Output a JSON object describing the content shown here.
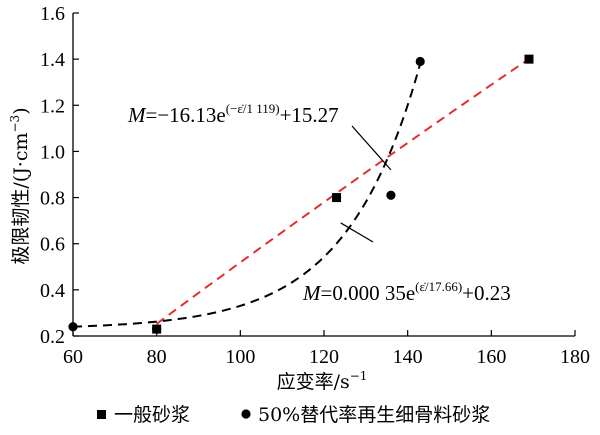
{
  "chart_data": {
    "type": "scatter",
    "xlabel": "应变率/s",
    "xlabel_sup": "−1",
    "ylabel": "极限韧性/(J·cm",
    "ylabel_sup": "−3",
    "ylabel_end": ")",
    "xlim": [
      60,
      180
    ],
    "ylim": [
      0.2,
      1.6
    ],
    "xticks": [
      "60",
      "80",
      "100",
      "120",
      "140",
      "160",
      "180"
    ],
    "yticks": [
      "0.2",
      "0.4",
      "0.6",
      "0.8",
      "1.0",
      "1.2",
      "1.4",
      "1.6"
    ],
    "grid": false,
    "legend_position": "bottom",
    "series": [
      {
        "name": "一般砂浆",
        "marker": "square",
        "color": "#000000",
        "points": [
          [
            80,
            0.23
          ],
          [
            123,
            0.8
          ],
          [
            169,
            1.4
          ]
        ],
        "fit": {
          "color": "#e03030",
          "dash": "dashed",
          "x_range": [
            80,
            169
          ],
          "equation": {
            "prefix": "M",
            "middle": "=−16.13e",
            "exponent": "(−ε̇/1 119)",
            "suffix": "+15.27"
          }
        }
      },
      {
        "name": "50%替代率再生细骨料砂浆",
        "marker": "circle",
        "color": "#000000",
        "points": [
          [
            60,
            0.24
          ],
          [
            80,
            0.23
          ],
          [
            136,
            0.81
          ],
          [
            143,
            1.39
          ]
        ],
        "fit": {
          "color": "#000000",
          "dash": "dashed",
          "x_range": [
            60,
            143
          ],
          "equation": {
            "prefix": "M",
            "middle": "=0.000 35e",
            "exponent": "(ε̇/17.66)",
            "suffix": "+0.23"
          }
        }
      }
    ]
  }
}
